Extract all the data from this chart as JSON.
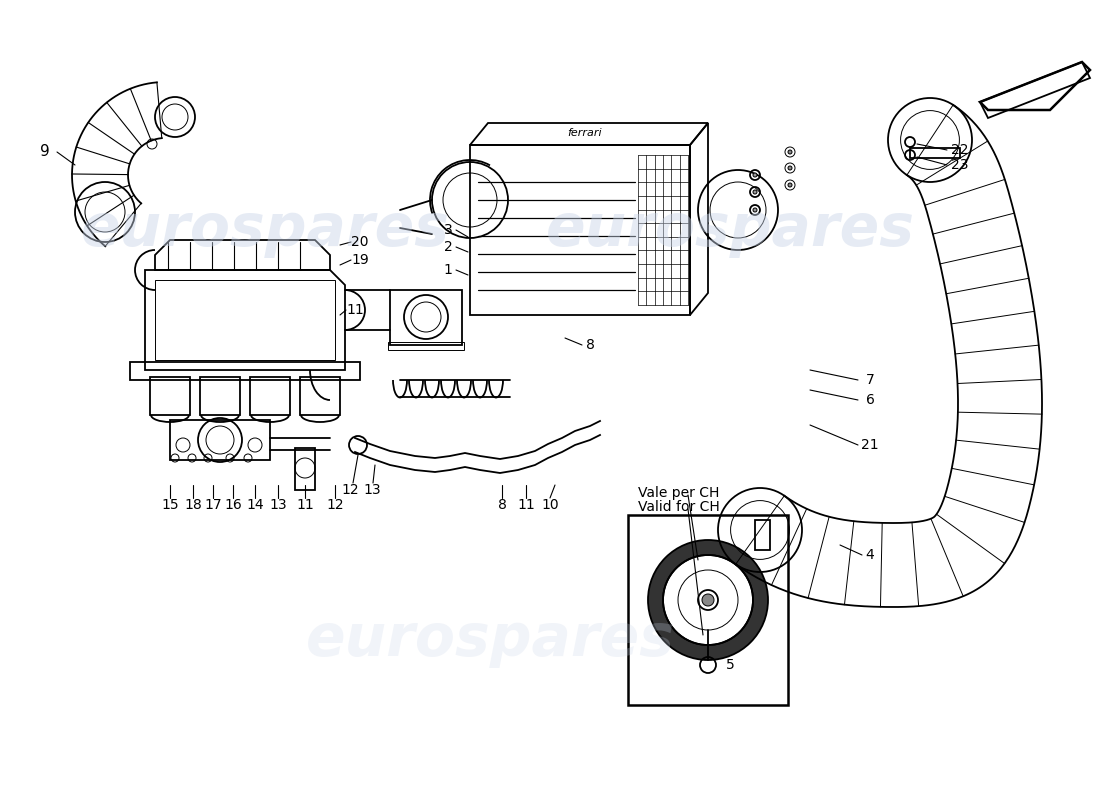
{
  "bg_color": "#ffffff",
  "watermark_color": "#c8d4e8",
  "watermark_alpha": 0.45,
  "watermark_text": "eurospares",
  "inset_label1": "Vale per CH",
  "inset_label2": "Valid for CH",
  "lw_main": 1.3,
  "lw_thin": 0.7,
  "lw_thick": 1.8
}
